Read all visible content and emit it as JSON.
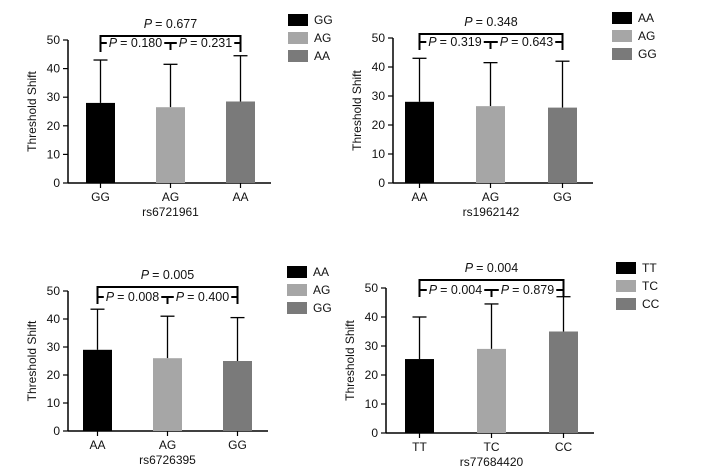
{
  "chart_data": [
    {
      "type": "bar",
      "categories": [
        "GG",
        "AG",
        "AA"
      ],
      "values": [
        28,
        26.5,
        28.5
      ],
      "errors": [
        15,
        15,
        16
      ],
      "colors": [
        "#000000",
        "#a6a6a6",
        "#7a7a7a"
      ],
      "xlabel": "rs6721961",
      "ylabel": "Threshold Shift",
      "ylim": [
        0,
        50
      ],
      "yticks": [
        0,
        10,
        20,
        30,
        40,
        50
      ],
      "legend": [
        "GG",
        "AG",
        "AA"
      ],
      "legend_position": "right",
      "pvalues": [
        {
          "from": 0,
          "to": 1,
          "label": "= 0.180"
        },
        {
          "from": 1,
          "to": 2,
          "label": "= 0.231"
        },
        {
          "from": 0,
          "to": 2,
          "label": "= 0.677"
        }
      ]
    },
    {
      "type": "bar",
      "categories": [
        "AA",
        "AG",
        "GG"
      ],
      "values": [
        28,
        26.5,
        26
      ],
      "errors": [
        15,
        15,
        16
      ],
      "colors": [
        "#000000",
        "#a6a6a6",
        "#7a7a7a"
      ],
      "xlabel": "rs1962142",
      "ylabel": "Threshold Shift",
      "ylim": [
        0,
        50
      ],
      "yticks": [
        0,
        10,
        20,
        30,
        40,
        50
      ],
      "legend": [
        "AA",
        "AG",
        "GG"
      ],
      "legend_position": "right",
      "pvalues": [
        {
          "from": 0,
          "to": 1,
          "label": "= 0.319"
        },
        {
          "from": 1,
          "to": 2,
          "label": "= 0.643"
        },
        {
          "from": 0,
          "to": 2,
          "label": "= 0.348"
        }
      ]
    },
    {
      "type": "bar",
      "categories": [
        "AA",
        "AG",
        "GG"
      ],
      "values": [
        29,
        26,
        25
      ],
      "errors": [
        14.5,
        15,
        15.5
      ],
      "colors": [
        "#000000",
        "#a6a6a6",
        "#7a7a7a"
      ],
      "xlabel": "rs6726395",
      "ylabel": "Threshold Shift",
      "ylim": [
        0,
        50
      ],
      "yticks": [
        0,
        10,
        20,
        30,
        40,
        50
      ],
      "legend": [
        "AA",
        "AG",
        "GG"
      ],
      "legend_position": "right",
      "pvalues": [
        {
          "from": 0,
          "to": 1,
          "label": "= 0.008"
        },
        {
          "from": 1,
          "to": 2,
          "label": "= 0.400"
        },
        {
          "from": 0,
          "to": 2,
          "label": "= 0.005"
        }
      ]
    },
    {
      "type": "bar",
      "categories": [
        "TT",
        "TC",
        "CC"
      ],
      "values": [
        25.5,
        29,
        35
      ],
      "errors": [
        14.5,
        15.5,
        12
      ],
      "colors": [
        "#000000",
        "#a6a6a6",
        "#7a7a7a"
      ],
      "xlabel": "rs77684420",
      "ylabel": "Threshold Shift",
      "ylim": [
        0,
        50
      ],
      "yticks": [
        0,
        10,
        20,
        30,
        40,
        50
      ],
      "legend": [
        "TT",
        "TC",
        "CC"
      ],
      "legend_position": "right",
      "pvalues": [
        {
          "from": 0,
          "to": 1,
          "label": "= 0.004"
        },
        {
          "from": 1,
          "to": 2,
          "label": "= 0.879"
        },
        {
          "from": 0,
          "to": 2,
          "label": "= 0.004"
        }
      ]
    }
  ],
  "pvalue_symbol": "P"
}
